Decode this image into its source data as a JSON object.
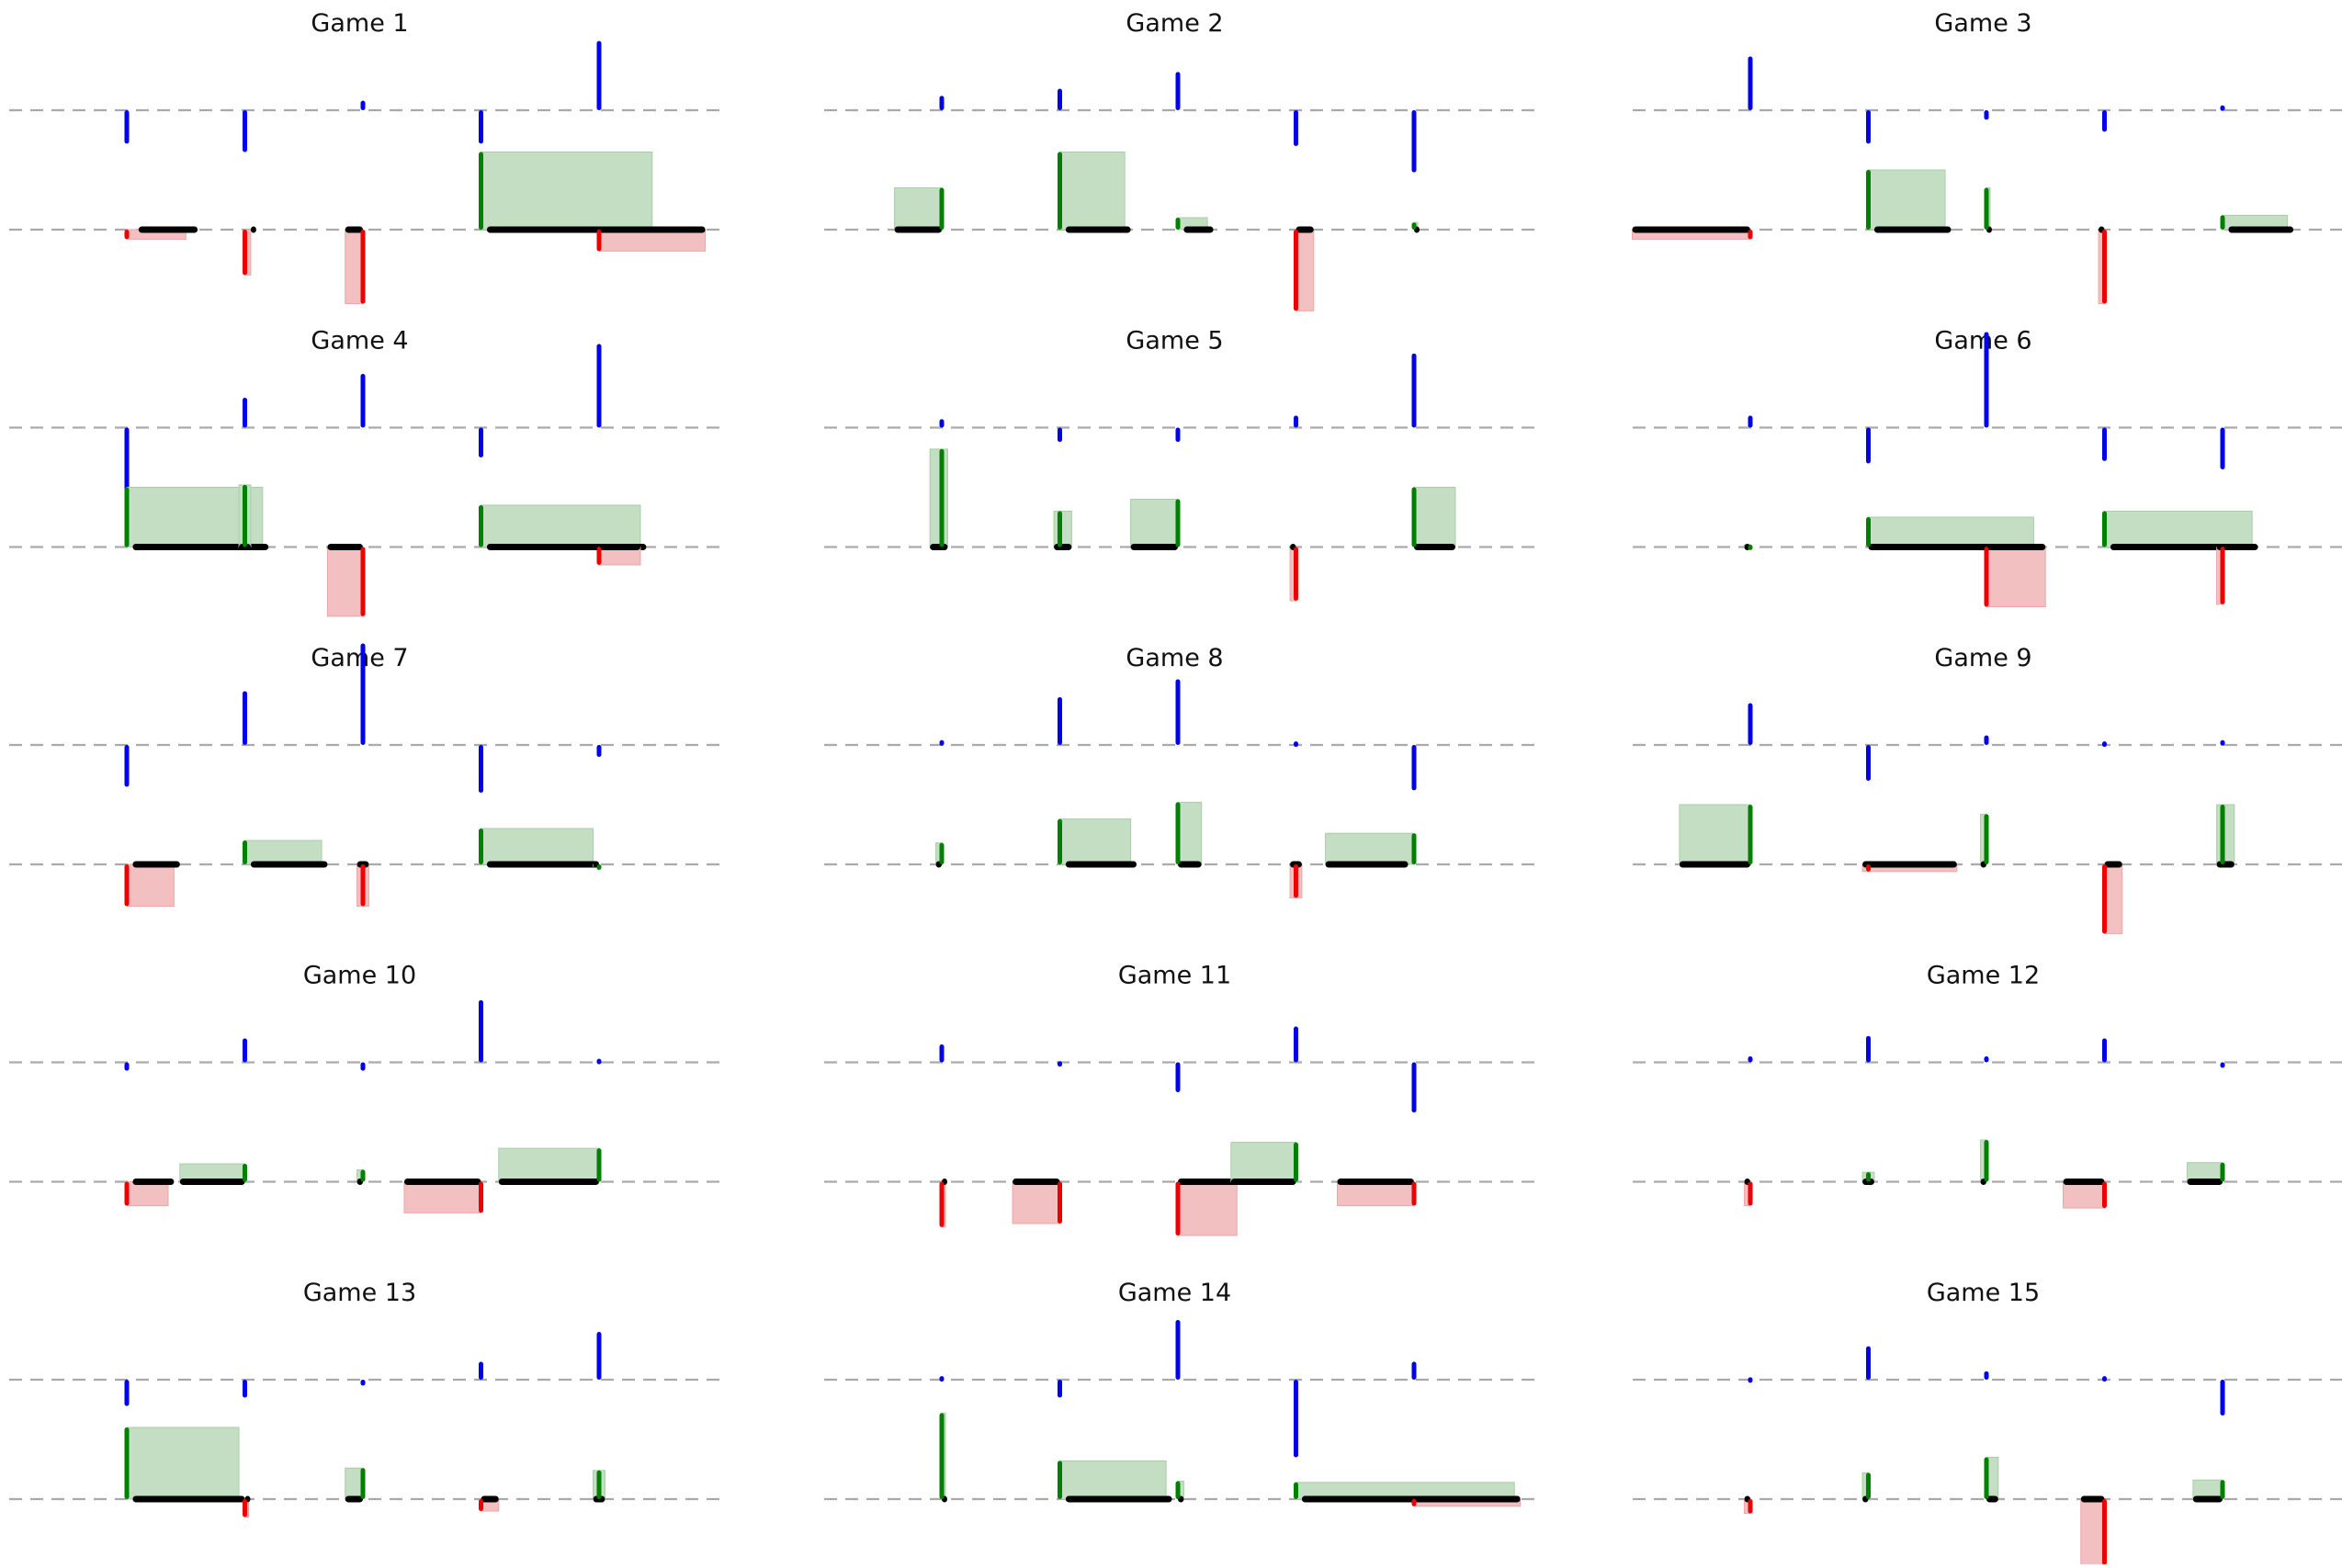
{
  "chart_data": {
    "type": "grid-of-event-charts",
    "grid": {
      "rows": 5,
      "cols": 3
    },
    "reference_lines": {
      "upper": 1,
      "lower": 0,
      "style": "dashed",
      "color": "#aaaaaa"
    },
    "slots_per_game": 5,
    "colors": {
      "blue": "#0000ee",
      "black": "#000000",
      "green": "#008000",
      "red": "#ee0000",
      "green_fill": "#c3dec3",
      "red_fill": "#f2c0c0"
    },
    "legend": "none",
    "axes": "hidden",
    "games": [
      {
        "title": "Game 1",
        "blue": [
          -0.28,
          -0.35,
          0.08,
          -0.28,
          0.58
        ],
        "spans": [
          [
            0.1,
            0.6
          ],
          [
            1.05,
            1.08
          ],
          [
            1.85,
            2.0
          ],
          [
            3.05,
            4.5
          ],
          [
            4.0,
            4.9
          ]
        ],
        "deltas": [
          -0.08,
          -0.38,
          -0.62,
          0.65,
          -0.18
        ]
      },
      {
        "title": "Game 2",
        "blue": [
          0.12,
          0.18,
          0.32,
          -0.3,
          -0.52
        ],
        "spans": [
          [
            -0.4,
            0.0
          ],
          [
            1.05,
            1.6
          ],
          [
            2.05,
            2.3
          ],
          [
            3.0,
            3.15
          ],
          [
            4.0,
            4.0
          ]
        ],
        "deltas": [
          0.35,
          0.65,
          0.1,
          -0.68,
          0.06
        ]
      },
      {
        "title": "Game 3",
        "blue": [
          0.45,
          -0.28,
          -0.08,
          -0.18,
          0.04
        ],
        "spans": [
          [
            -1.0,
            0.0
          ],
          [
            1.05,
            1.7
          ],
          [
            2.0,
            2.0
          ],
          [
            2.95,
            3.0
          ],
          [
            4.05,
            4.6
          ]
        ],
        "deltas": [
          -0.08,
          0.5,
          0.35,
          -0.62,
          0.12
        ]
      },
      {
        "title": "Game 4",
        "blue": [
          -1.0,
          0.25,
          0.45,
          -0.25,
          0.7
        ],
        "spans": [
          [
            0.05,
            1.2
          ],
          [
            0.95,
            1.05
          ],
          [
            1.7,
            2.0
          ],
          [
            3.05,
            4.4
          ],
          [
            4.0,
            4.35
          ]
        ],
        "deltas": [
          0.5,
          0.52,
          -0.58,
          0.35,
          -0.15
        ]
      },
      {
        "title": "Game 5",
        "blue": [
          0.07,
          -0.12,
          -0.12,
          0.1,
          0.62
        ],
        "spans": [
          [
            -0.1,
            0.05
          ],
          [
            0.95,
            1.1
          ],
          [
            1.6,
            2.0
          ],
          [
            2.95,
            3.0
          ],
          [
            4.0,
            4.35
          ]
        ],
        "deltas": [
          0.82,
          0.3,
          0.4,
          -0.45,
          0.5
        ]
      },
      {
        "title": "Game 6",
        "blue": [
          0.1,
          -0.3,
          0.8,
          -0.28,
          -0.35
        ],
        "spans": [
          [
            -0.05,
            0.0
          ],
          [
            1.0,
            2.4
          ],
          [
            2.0,
            2.5
          ],
          [
            3.05,
            4.3
          ],
          [
            3.95,
            4.0
          ]
        ],
        "deltas": [
          0.02,
          0.25,
          -0.5,
          0.3,
          -0.48
        ]
      },
      {
        "title": "Game 7",
        "blue": [
          -0.35,
          0.45,
          0.85,
          -0.4,
          -0.1
        ],
        "spans": [
          [
            0.05,
            0.45
          ],
          [
            1.05,
            1.7
          ],
          [
            1.95,
            2.05
          ],
          [
            3.05,
            4.0
          ],
          [
            3.95,
            4.0
          ]
        ],
        "deltas": [
          -0.35,
          0.2,
          -0.35,
          0.3,
          0.0
        ]
      },
      {
        "title": "Game 8",
        "blue": [
          0.04,
          0.4,
          0.55,
          0.03,
          -0.38
        ],
        "spans": [
          [
            -0.05,
            0.0
          ],
          [
            1.05,
            1.65
          ],
          [
            2.0,
            2.2
          ],
          [
            2.95,
            3.05
          ],
          [
            3.25,
            3.95
          ]
        ],
        "deltas": [
          0.18,
          0.38,
          0.52,
          -0.28,
          0.26
        ]
      },
      {
        "title": "Game 9",
        "blue": [
          0.35,
          -0.3,
          0.08,
          0.03,
          0.04
        ],
        "spans": [
          [
            -0.6,
            0.0
          ],
          [
            0.95,
            1.75
          ],
          [
            1.95,
            2.0
          ],
          [
            3.0,
            3.15
          ],
          [
            3.95,
            4.1
          ]
        ],
        "deltas": [
          0.5,
          -0.06,
          0.42,
          -0.58,
          0.5
        ]
      },
      {
        "title": "Game 10",
        "blue": [
          -0.07,
          0.2,
          -0.07,
          0.52,
          0.03
        ],
        "spans": [
          [
            0.05,
            0.4
          ],
          [
            0.45,
            1.0
          ],
          [
            1.95,
            2.0
          ],
          [
            2.35,
            3.0
          ],
          [
            3.15,
            4.0
          ]
        ],
        "deltas": [
          -0.2,
          0.15,
          0.1,
          -0.26,
          0.28
        ]
      },
      {
        "title": "Game 11",
        "blue": [
          0.15,
          0.01,
          -0.25,
          0.3,
          -0.42
        ],
        "spans": [
          [
            0.0,
            0.0
          ],
          [
            0.6,
            1.0
          ],
          [
            2.0,
            2.5
          ],
          [
            2.45,
            3.0
          ],
          [
            3.35,
            4.0
          ]
        ],
        "deltas": [
          -0.38,
          -0.35,
          -0.45,
          0.33,
          -0.2
        ]
      },
      {
        "title": "Game 12",
        "blue": [
          0.05,
          0.22,
          0.05,
          0.2,
          -0.03
        ],
        "spans": [
          [
            -0.05,
            0.0
          ],
          [
            0.95,
            1.05
          ],
          [
            1.95,
            2.0
          ],
          [
            2.65,
            3.0
          ],
          [
            3.7,
            4.0
          ]
        ],
        "deltas": [
          -0.2,
          0.08,
          0.35,
          -0.22,
          0.16
        ]
      },
      {
        "title": "Game 13",
        "blue": [
          -0.22,
          -0.15,
          -0.05,
          0.15,
          0.4
        ],
        "spans": [
          [
            0.05,
            1.0
          ],
          [
            1.0,
            1.0
          ],
          [
            1.85,
            2.0
          ],
          [
            3.0,
            3.15
          ],
          [
            3.95,
            4.05
          ]
        ],
        "deltas": [
          0.6,
          -0.15,
          0.26,
          -0.1,
          0.24
        ]
      },
      {
        "title": "Game 14",
        "blue": [
          0.03,
          -0.15,
          0.5,
          -0.65,
          0.15
        ],
        "spans": [
          [
            0.0,
            0.0
          ],
          [
            1.05,
            1.95
          ],
          [
            2.0,
            2.05
          ],
          [
            3.05,
            4.9
          ],
          [
            4.0,
            4.9
          ]
        ],
        "deltas": [
          0.72,
          0.32,
          0.15,
          0.14,
          -0.06
        ]
      },
      {
        "title": "Game 15",
        "blue": [
          0.02,
          0.28,
          0.07,
          0.03,
          -0.3
        ],
        "spans": [
          [
            -0.05,
            0.0
          ],
          [
            0.95,
            1.0
          ],
          [
            2.0,
            2.1
          ],
          [
            2.8,
            3.0
          ],
          [
            3.75,
            4.0
          ]
        ],
        "deltas": [
          -0.12,
          0.22,
          0.35,
          -0.55,
          0.16
        ]
      }
    ]
  }
}
